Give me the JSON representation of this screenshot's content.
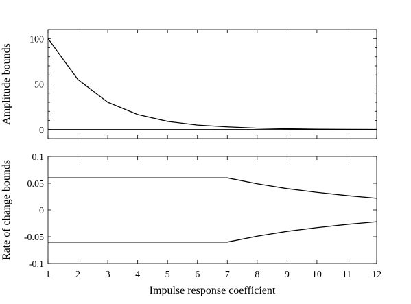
{
  "chart_data": [
    {
      "type": "line",
      "title": "",
      "xlabel": "",
      "ylabel": "Amplitude bounds",
      "x": [
        1,
        2,
        3,
        4,
        5,
        6,
        7,
        8,
        9,
        10,
        11,
        12
      ],
      "xlim": [
        1,
        12
      ],
      "ylim": [
        -10,
        110
      ],
      "yticks": [
        0,
        50,
        100
      ],
      "ytick_labels": [
        "0",
        "50",
        "100"
      ],
      "grid": false,
      "legend": "none",
      "series": [
        {
          "values": [
            100,
            55,
            30,
            16.5,
            9,
            5,
            3,
            1.6,
            0.9,
            0.5,
            0.3,
            0.2
          ]
        },
        {
          "values": [
            0,
            0,
            0,
            0,
            0,
            0,
            0,
            0,
            0,
            0,
            0,
            0
          ]
        }
      ]
    },
    {
      "type": "line",
      "title": "",
      "xlabel": "Impulse response coefficient",
      "ylabel": "Rate of change bounds",
      "x": [
        1,
        2,
        3,
        4,
        5,
        6,
        7,
        8,
        9,
        10,
        11,
        12
      ],
      "xlim": [
        1,
        12
      ],
      "ylim": [
        -0.1,
        0.1
      ],
      "xticks": [
        1,
        2,
        3,
        4,
        5,
        6,
        7,
        8,
        9,
        10,
        11,
        12
      ],
      "xtick_labels": [
        "1",
        "2",
        "3",
        "4",
        "5",
        "6",
        "7",
        "8",
        "9",
        "10",
        "11",
        "12"
      ],
      "yticks": [
        -0.1,
        -0.05,
        0,
        0.05,
        0.1
      ],
      "ytick_labels": [
        "-0.1",
        "-0.05",
        "0",
        "0.05",
        "0.1"
      ],
      "grid": false,
      "legend": "none",
      "series": [
        {
          "values": [
            0.06,
            0.06,
            0.06,
            0.06,
            0.06,
            0.06,
            0.06,
            0.049,
            0.04,
            0.033,
            0.027,
            0.022
          ]
        },
        {
          "values": [
            -0.06,
            -0.06,
            -0.06,
            -0.06,
            -0.06,
            -0.06,
            -0.06,
            -0.049,
            -0.04,
            -0.033,
            -0.027,
            -0.022
          ]
        }
      ]
    }
  ]
}
